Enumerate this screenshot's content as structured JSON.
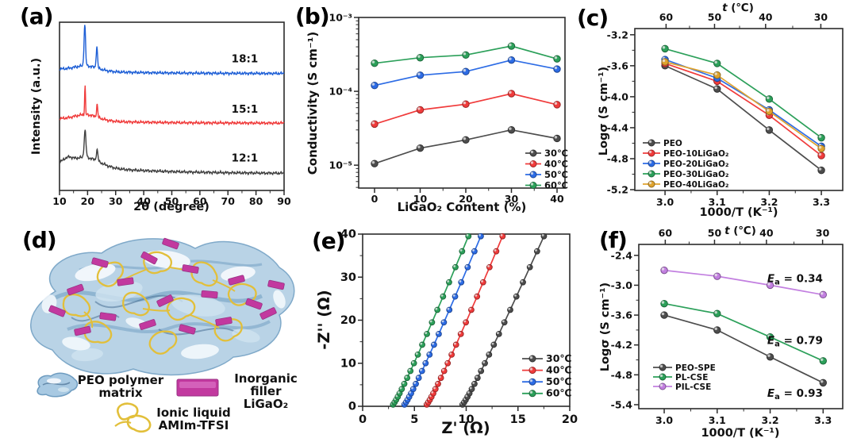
{
  "figure": {
    "panels": {
      "a": {
        "label": "(a)"
      },
      "b": {
        "label": "(b)"
      },
      "c": {
        "label": "(c)"
      },
      "d": {
        "label": "(d)",
        "legend": [
          {
            "icon": "peo-blob-icon",
            "lines": [
              "PEO polymer",
              "matrix"
            ]
          },
          {
            "icon": "inorganic-filler-icon",
            "lines": [
              "Inorganic filler",
              "LiGaO₂"
            ]
          },
          {
            "icon": "ionic-liquid-icon",
            "lines": [
              "Ionic liquid",
              "AMIm-TFSI"
            ]
          }
        ]
      },
      "e": {
        "label": "(e)"
      },
      "f": {
        "label": "(f)"
      }
    }
  },
  "colors": {
    "gray": "#4d4d4d",
    "red": "#f03b3b",
    "blue": "#2d6ce5",
    "green": "#2ca05a",
    "orange": "#dfa32e",
    "violet": "#c27fe0",
    "xrd_black": "#404040",
    "magenta_filler": "#c2399f",
    "yellow_ionic": "#e2bf3a",
    "matrix_blue": "#b9d3e6"
  },
  "chart_data": [
    {
      "id": "a",
      "type": "xrd",
      "xlabel": "2θ (degree)",
      "ylabel": "Intensity (a.u.)",
      "xlim": [
        10,
        90
      ],
      "xticks": [
        10,
        20,
        30,
        40,
        50,
        60,
        70,
        80,
        90
      ],
      "xdec": 0,
      "xminor": [
        15,
        25,
        35,
        45,
        55,
        65,
        75,
        85
      ],
      "series": [
        {
          "name": "12:1",
          "color": "#404040",
          "offset": 0.1,
          "tail": 0.06,
          "decay": 25,
          "humps": [
            {
              "c": 19.5,
              "w": 7,
              "h": 0.055
            },
            {
              "c": 13,
              "w": 2,
              "h": 0.022
            }
          ],
          "peaks": [
            {
              "c": 19.1,
              "w": 0.45,
              "h": 0.16
            },
            {
              "c": 23.4,
              "w": 0.4,
              "h": 0.065
            }
          ],
          "label_x": 76,
          "label_y": 0.19
        },
        {
          "name": "15:1",
          "color": "#f03b3b",
          "offset": 0.4,
          "tail": 0.025,
          "decay": 20,
          "humps": [
            {
              "c": 19.5,
              "w": 6,
              "h": 0.035
            }
          ],
          "peaks": [
            {
              "c": 19.1,
              "w": 0.22,
              "h": 0.17
            },
            {
              "c": 23.4,
              "w": 0.3,
              "h": 0.075
            }
          ],
          "label_x": 76,
          "label_y": 0.48
        },
        {
          "name": "18:1",
          "color": "#1e5fd6",
          "offset": 0.695,
          "tail": 0.025,
          "decay": 20,
          "humps": [
            {
              "c": 19.5,
              "w": 6,
              "h": 0.03
            }
          ],
          "peaks": [
            {
              "c": 19.0,
              "w": 0.38,
              "h": 0.245
            },
            {
              "c": 23.3,
              "w": 0.35,
              "h": 0.125
            }
          ],
          "label_x": 76,
          "label_y": 0.78
        }
      ]
    },
    {
      "id": "b",
      "type": "line",
      "yscale": "log",
      "xlabel": "LiGaO₂ Content (%)",
      "ylabel": "Conductivity (S cm⁻¹)",
      "x": [
        0,
        10,
        20,
        30,
        40
      ],
      "xticks": [
        0,
        10,
        20,
        30,
        40
      ],
      "xdec": 0,
      "xminor": [
        5,
        15,
        25,
        35
      ],
      "xlim": [
        -3.48,
        41.74
      ],
      "ylim": [
        -5.31,
        -3.0
      ],
      "yticks": [
        {
          "e": -3,
          "label": "10⁻³"
        },
        {
          "e": -4,
          "label": "10⁻⁴"
        },
        {
          "e": -5,
          "label": "10⁻⁵"
        }
      ],
      "legend_pos": "bottom-right",
      "series": [
        {
          "name": "30℃",
          "color": "#4d4d4d",
          "values": [
            1.05e-05,
            1.7e-05,
            2.2e-05,
            3e-05,
            2.3e-05
          ]
        },
        {
          "name": "40℃",
          "color": "#f03b3b",
          "values": [
            3.6e-05,
            5.6e-05,
            6.7e-05,
            9.3e-05,
            6.6e-05
          ]
        },
        {
          "name": "50℃",
          "color": "#2d6ce5",
          "values": [
            0.00012,
            0.000165,
            0.000185,
            0.000265,
            0.0002
          ]
        },
        {
          "name": "60℃",
          "color": "#2ca05a",
          "values": [
            0.00024,
            0.000285,
            0.00031,
            0.00041,
            0.000275
          ]
        }
      ]
    },
    {
      "id": "c",
      "type": "line",
      "xlabel": "1000/T (K⁻¹)",
      "ylabel": "Logσ (S cm⁻¹)",
      "top_axis": {
        "label": "t (℃)",
        "ticks": [
          {
            "v": 3.002,
            "label": "60"
          },
          {
            "v": 3.095,
            "label": "50"
          },
          {
            "v": 3.193,
            "label": "40"
          },
          {
            "v": 3.299,
            "label": "30"
          }
        ],
        "minor": [
          3.047,
          3.143,
          3.245
        ]
      },
      "x": [
        3.0,
        3.1,
        3.2,
        3.3
      ],
      "xticks": [
        3.0,
        3.1,
        3.2,
        3.3
      ],
      "xdec": 1,
      "xminor": [
        3.05,
        3.15,
        3.25
      ],
      "xlim": [
        2.942,
        3.341
      ],
      "ylim": [
        -5.21,
        -3.12
      ],
      "yticks": [
        -3.2,
        -3.6,
        -4.0,
        -4.4,
        -4.8,
        -5.2
      ],
      "ydec": 1,
      "yminor": [
        -3.4,
        -3.8,
        -4.2,
        -4.6,
        -5.0
      ],
      "legend_pos": "bottom-left",
      "series": [
        {
          "name": "PEO",
          "color": "#4d4d4d",
          "values": [
            -3.6,
            -3.9,
            -4.43,
            -4.95
          ]
        },
        {
          "name": "PEO-10LiGaO₂",
          "color": "#f03b3b",
          "values": [
            -3.57,
            -3.8,
            -4.24,
            -4.76
          ]
        },
        {
          "name": "PEO-20LiGaO₂",
          "color": "#2d6ce5",
          "values": [
            -3.52,
            -3.76,
            -4.17,
            -4.64
          ]
        },
        {
          "name": "PEO-30LiGaO₂",
          "color": "#2ca05a",
          "values": [
            -3.38,
            -3.57,
            -4.03,
            -4.53
          ]
        },
        {
          "name": "PEO-40LiGaO₂",
          "color": "#dfa32e",
          "values": [
            -3.55,
            -3.72,
            -4.19,
            -4.67
          ]
        }
      ]
    },
    {
      "id": "e",
      "type": "nyquist",
      "xlabel": "Z' (Ω)",
      "ylabel": "-Z'' (Ω)",
      "xlim": [
        0,
        20
      ],
      "ylim": [
        0,
        40
      ],
      "xticks": [
        0,
        5,
        10,
        15,
        20
      ],
      "xdec": 0,
      "xminor": [
        2.5,
        7.5,
        12.5,
        17.5
      ],
      "yticks": [
        0,
        10,
        20,
        30,
        40
      ],
      "ydec": 0,
      "yminor": [
        5,
        15,
        25,
        35
      ],
      "marker_y": [
        0.4,
        0.9,
        1.5,
        2.2,
        3.0,
        4.0,
        5.2,
        6.6,
        8.2,
        10,
        12,
        14.3,
        16.8,
        19.5,
        22.4,
        25.5,
        28.8,
        32.3,
        36,
        39.5
      ],
      "legend_pos": "right-middle",
      "series": [
        {
          "name": "30℃",
          "color": "#4d4d4d",
          "x_intercept": 9.45,
          "x_at_ymax": 17.6
        },
        {
          "name": "40℃",
          "color": "#f03b3b",
          "x_intercept": 6.0,
          "x_at_ymax": 13.6
        },
        {
          "name": "50℃",
          "color": "#2d6ce5",
          "x_intercept": 3.85,
          "x_at_ymax": 11.5
        },
        {
          "name": "60℃",
          "color": "#2ca05a",
          "x_intercept": 2.75,
          "x_at_ymax": 10.3
        }
      ]
    },
    {
      "id": "f",
      "type": "line",
      "xlabel": "1000/T (K⁻¹)",
      "ylabel": "Logσ (S cm⁻¹)",
      "top_axis": {
        "label": "t (℃)",
        "ticks": [
          {
            "v": 3.002,
            "label": "60"
          },
          {
            "v": 3.095,
            "label": "50"
          },
          {
            "v": 3.193,
            "label": "40"
          },
          {
            "v": 3.299,
            "label": "30"
          }
        ],
        "minor": [
          3.047,
          3.143,
          3.245
        ]
      },
      "x": [
        3.0,
        3.1,
        3.2,
        3.3
      ],
      "xticks": [
        3.0,
        3.1,
        3.2,
        3.3
      ],
      "xdec": 1,
      "xminor": [
        3.05,
        3.15,
        3.25
      ],
      "xlim": [
        2.952,
        3.337
      ],
      "ylim": [
        -5.48,
        -2.18
      ],
      "yticks": [
        -2.4,
        -3.0,
        -3.6,
        -4.2,
        -4.8,
        -5.4
      ],
      "ydec": 1,
      "yminor": [
        -2.7,
        -3.3,
        -3.9,
        -4.5,
        -5.1
      ],
      "legend_pos": "left-middle",
      "series": [
        {
          "name": "PEO-SPE",
          "color": "#4d4d4d",
          "values": [
            -3.6,
            -3.9,
            -4.44,
            -4.96
          ]
        },
        {
          "name": "PL-CSE",
          "color": "#2ca05a",
          "values": [
            -3.37,
            -3.57,
            -4.04,
            -4.52
          ]
        },
        {
          "name": "PIL-CSE",
          "color": "#c27fe0",
          "values": [
            -2.7,
            -2.82,
            -3.0,
            -3.19
          ]
        }
      ],
      "annotations": [
        {
          "text": "Ea = 0.34",
          "x": 3.247,
          "y": -2.87
        },
        {
          "text": "Ea = 0.79",
          "x": 3.247,
          "y": -4.12
        },
        {
          "text": "Ea = 0.93",
          "x": 3.247,
          "y": -5.18
        }
      ]
    }
  ]
}
